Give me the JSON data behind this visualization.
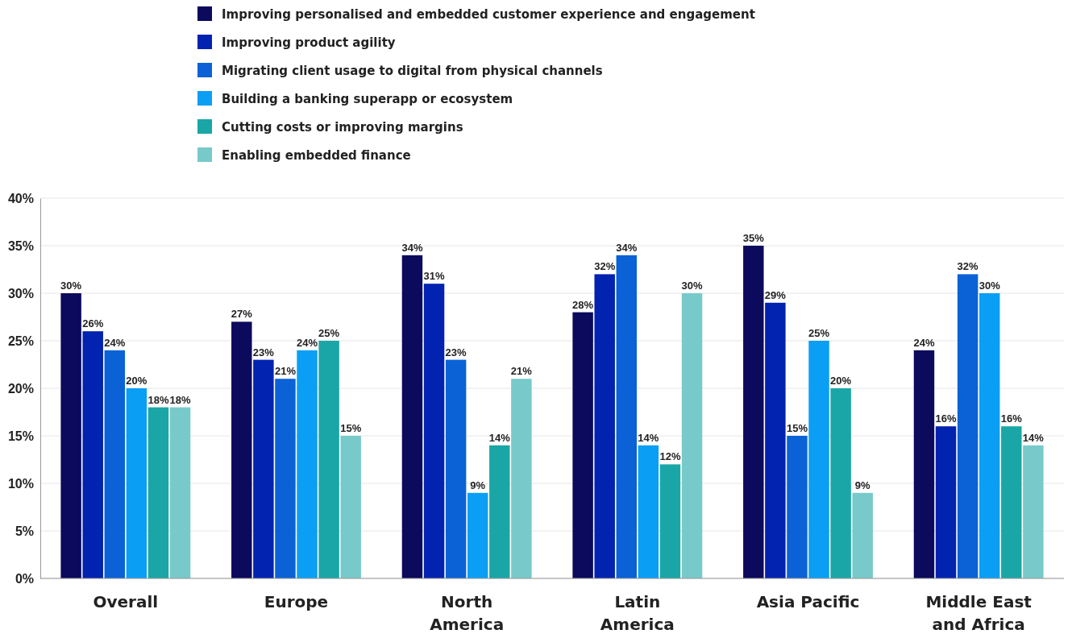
{
  "chart_data": {
    "type": "bar",
    "categories": [
      "Overall",
      "Europe",
      "North America",
      "Latin America",
      "Asia Pacific",
      "Middle East and Africa"
    ],
    "series": [
      {
        "name": "Improving personalised and embedded customer experience and engagement",
        "color": "#0b0a5c",
        "values": [
          30,
          27,
          34,
          28,
          35,
          24
        ],
        "value_labels": [
          "30%",
          "27%",
          "34%",
          "28%",
          "35%",
          "24%"
        ]
      },
      {
        "name": "Improving product agility",
        "color": "#0222b0",
        "values": [
          26,
          23,
          31,
          32,
          29,
          16
        ],
        "value_labels": [
          "26%",
          "23%",
          "31%",
          "32%",
          "29%",
          "16%"
        ]
      },
      {
        "name": "Migrating client usage to digital from physical channels",
        "color": "#0a62d6",
        "values": [
          24,
          21,
          23,
          34,
          15,
          32
        ],
        "value_labels": [
          "24%",
          "21%",
          "23%",
          "34%",
          "15%",
          "32%"
        ]
      },
      {
        "name": "Building a banking superapp or ecosystem",
        "color": "#0a9ff5",
        "values": [
          20,
          24,
          9,
          14,
          25,
          30
        ],
        "value_labels": [
          "20%",
          "24%",
          "9%",
          "14%",
          "25%",
          "30%"
        ]
      },
      {
        "name": "Cutting costs or improving margins",
        "color": "#1aa6a6",
        "values": [
          18,
          25,
          14,
          12,
          20,
          16
        ],
        "value_labels": [
          "18%",
          "25%",
          "14%",
          "12%",
          "20%",
          "16%"
        ]
      },
      {
        "name": "Enabling embedded finance",
        "color": "#78caca",
        "values": [
          18,
          15,
          21,
          30,
          9,
          14
        ],
        "value_labels": [
          "18%",
          "15%",
          "21%",
          "30%",
          "9%",
          "14%"
        ]
      }
    ],
    "ylim": [
      0,
      40
    ],
    "yticks": [
      {
        "value": 0,
        "label": "0%"
      },
      {
        "value": 5,
        "label": "5%"
      },
      {
        "value": 10,
        "label": "10%"
      },
      {
        "value": 15,
        "label": "15%"
      },
      {
        "value": 20,
        "label": "20%"
      },
      {
        "value": 25,
        "label": "25%"
      },
      {
        "value": 30,
        "label": "30%"
      },
      {
        "value": 35,
        "label": "35%"
      },
      {
        "value": 40,
        "label": "40%"
      }
    ],
    "grid": "y",
    "legend": "top"
  }
}
